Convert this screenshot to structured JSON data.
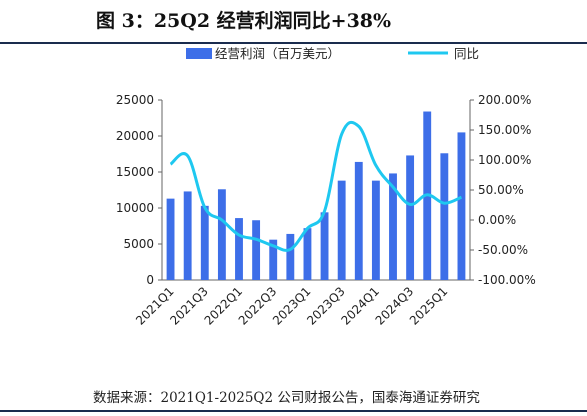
{
  "title": "图 3：25Q2 经营利润同比+38%",
  "source": "数据来源：2021Q1-2025Q2 公司财报公告，国泰海通证券研究",
  "chart_data": {
    "type": "bar",
    "categories": [
      "2021Q1",
      "2021Q2",
      "2021Q3",
      "2021Q4",
      "2022Q1",
      "2022Q2",
      "2022Q3",
      "2022Q4",
      "2023Q1",
      "2023Q2",
      "2023Q3",
      "2023Q4",
      "2024Q1",
      "2024Q2",
      "2024Q3",
      "2024Q4",
      "2025Q1",
      "2025Q2"
    ],
    "x_tick_labels": [
      "2021Q1",
      "2021Q3",
      "2022Q1",
      "2022Q3",
      "2023Q1",
      "2023Q3",
      "2024Q1",
      "2024Q3",
      "2025Q1"
    ],
    "series": [
      {
        "name": "经营利润（百万美元）",
        "type": "bar",
        "axis": "left",
        "color": "#3d6ee8",
        "values": [
          11300,
          12300,
          10300,
          12600,
          8600,
          8300,
          5600,
          6400,
          7200,
          9400,
          13800,
          16400,
          13800,
          14800,
          17300,
          23400,
          17600,
          20500
        ]
      },
      {
        "name": "同比",
        "type": "line",
        "axis": "right",
        "unit": "%",
        "color": "#1ec8f0",
        "values": [
          93,
          107,
          21,
          0,
          -25,
          -32,
          -43,
          -49,
          -14,
          15,
          143,
          156,
          91,
          55,
          26,
          42,
          28,
          38
        ]
      }
    ],
    "y_left": {
      "min": 0,
      "max": 25000,
      "ticks": [
        0,
        5000,
        10000,
        15000,
        20000,
        25000
      ]
    },
    "y_right": {
      "min": -100,
      "max": 200,
      "ticks": [
        "-100.00%",
        "-50.00%",
        "0.00%",
        "50.00%",
        "100.00%",
        "150.00%",
        "200.00%"
      ]
    },
    "legend": "top-center",
    "grid": false
  }
}
